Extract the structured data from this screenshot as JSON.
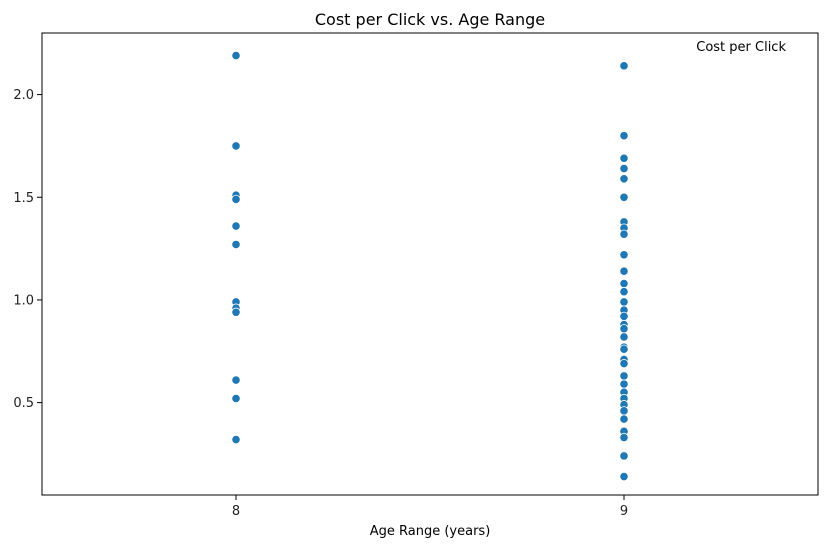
{
  "chart_data": {
    "type": "scatter",
    "title": "Cost per Click vs. Age Range",
    "xlabel": "Age Range (years)",
    "ylabel": "",
    "x_ticks": [
      "8",
      "9"
    ],
    "y_ticks": [
      "0.5",
      "1.0",
      "1.5",
      "2.0"
    ],
    "xlim": [
      7.5,
      9.5
    ],
    "ylim": [
      0.05,
      2.3
    ],
    "grid": false,
    "legend": {
      "entries": [
        "Cost per Click"
      ],
      "placement": "top-right"
    },
    "series": [
      {
        "name": "Cost per Click",
        "color": "#1f77b4",
        "points": [
          {
            "x": 8,
            "y": 2.19
          },
          {
            "x": 8,
            "y": 1.75
          },
          {
            "x": 8,
            "y": 1.51
          },
          {
            "x": 8,
            "y": 1.49
          },
          {
            "x": 8,
            "y": 1.36
          },
          {
            "x": 8,
            "y": 1.27
          },
          {
            "x": 8,
            "y": 0.99
          },
          {
            "x": 8,
            "y": 0.96
          },
          {
            "x": 8,
            "y": 0.94
          },
          {
            "x": 8,
            "y": 0.61
          },
          {
            "x": 8,
            "y": 0.52
          },
          {
            "x": 8,
            "y": 0.32
          },
          {
            "x": 9,
            "y": 2.14
          },
          {
            "x": 9,
            "y": 1.8
          },
          {
            "x": 9,
            "y": 1.69
          },
          {
            "x": 9,
            "y": 1.64
          },
          {
            "x": 9,
            "y": 1.59
          },
          {
            "x": 9,
            "y": 1.5
          },
          {
            "x": 9,
            "y": 1.38
          },
          {
            "x": 9,
            "y": 1.35
          },
          {
            "x": 9,
            "y": 1.32
          },
          {
            "x": 9,
            "y": 1.22
          },
          {
            "x": 9,
            "y": 1.14
          },
          {
            "x": 9,
            "y": 1.08
          },
          {
            "x": 9,
            "y": 1.04
          },
          {
            "x": 9,
            "y": 0.99
          },
          {
            "x": 9,
            "y": 0.95
          },
          {
            "x": 9,
            "y": 0.92
          },
          {
            "x": 9,
            "y": 0.88
          },
          {
            "x": 9,
            "y": 0.86
          },
          {
            "x": 9,
            "y": 0.82
          },
          {
            "x": 9,
            "y": 0.77
          },
          {
            "x": 9,
            "y": 0.76
          },
          {
            "x": 9,
            "y": 0.71
          },
          {
            "x": 9,
            "y": 0.69
          },
          {
            "x": 9,
            "y": 0.63
          },
          {
            "x": 9,
            "y": 0.59
          },
          {
            "x": 9,
            "y": 0.55
          },
          {
            "x": 9,
            "y": 0.52
          },
          {
            "x": 9,
            "y": 0.49
          },
          {
            "x": 9,
            "y": 0.46
          },
          {
            "x": 9,
            "y": 0.42
          },
          {
            "x": 9,
            "y": 0.36
          },
          {
            "x": 9,
            "y": 0.33
          },
          {
            "x": 9,
            "y": 0.24
          },
          {
            "x": 9,
            "y": 0.14
          }
        ]
      }
    ]
  }
}
